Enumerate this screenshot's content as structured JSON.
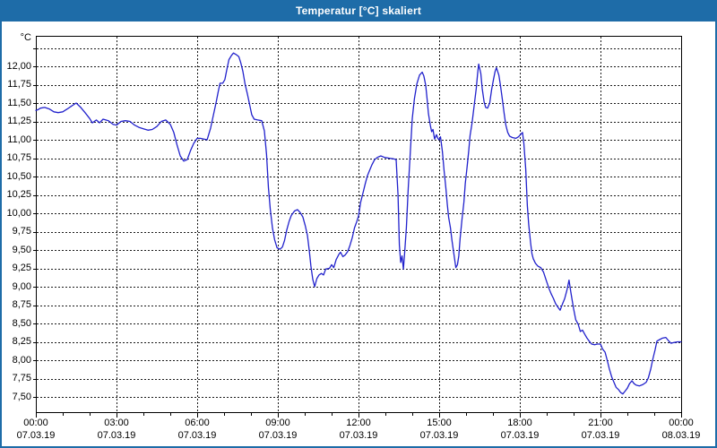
{
  "window": {
    "title": "Temperatur [°C] skaliert"
  },
  "colors": {
    "titlebar_bg": "#1E6CA8",
    "titlebar_text": "#FFFFFF",
    "window_border": "#1E6CA8",
    "plot_background": "#FFFFFF",
    "plot_border": "#000000",
    "gridline": "#1A1A1A",
    "axis_text": "#000000",
    "series_line": "#2121CC"
  },
  "chart_data": {
    "type": "line",
    "title": "Temperatur [°C] skaliert",
    "y_unit": "°C",
    "ylabel": "",
    "xlabel": "",
    "grid": "dashed, every 0.25 °C horizontally and every 3 h vertically",
    "legend": "none",
    "ylim_gridlines": [
      7.5,
      12.25
    ],
    "y_tick_step": 0.25,
    "y_ticks": [
      {
        "value": 12.25,
        "label": ""
      },
      {
        "value": 12.0,
        "label": "12,00"
      },
      {
        "value": 11.75,
        "label": "11,75"
      },
      {
        "value": 11.5,
        "label": "11,50"
      },
      {
        "value": 11.25,
        "label": "11,25"
      },
      {
        "value": 11.0,
        "label": "11,00"
      },
      {
        "value": 10.75,
        "label": "10,75"
      },
      {
        "value": 10.5,
        "label": "10,50"
      },
      {
        "value": 10.25,
        "label": "10,25"
      },
      {
        "value": 10.0,
        "label": "10,00"
      },
      {
        "value": 9.75,
        "label": "9,75"
      },
      {
        "value": 9.5,
        "label": "9,50"
      },
      {
        "value": 9.25,
        "label": "9,25"
      },
      {
        "value": 9.0,
        "label": "9,00"
      },
      {
        "value": 8.75,
        "label": "8,75"
      },
      {
        "value": 8.5,
        "label": "8,50"
      },
      {
        "value": 8.25,
        "label": "8,25"
      },
      {
        "value": 8.0,
        "label": "8,00"
      },
      {
        "value": 7.75,
        "label": "7,75"
      },
      {
        "value": 7.5,
        "label": "7,50"
      }
    ],
    "x_ticks": [
      {
        "hour": 0,
        "time": "00:00",
        "date": "07.03.19"
      },
      {
        "hour": 3,
        "time": "03:00",
        "date": "07.03.19"
      },
      {
        "hour": 6,
        "time": "06:00",
        "date": "07.03.19"
      },
      {
        "hour": 9,
        "time": "09:00",
        "date": "07.03.19"
      },
      {
        "hour": 12,
        "time": "12:00",
        "date": "07.03.19"
      },
      {
        "hour": 15,
        "time": "15:00",
        "date": "07.03.19"
      },
      {
        "hour": 18,
        "time": "18:00",
        "date": "07.03.19"
      },
      {
        "hour": 21,
        "time": "21:00",
        "date": "07.03.19"
      },
      {
        "hour": 24,
        "time": "00:00",
        "date": "08.03.19"
      }
    ],
    "x_minor_tick_every_hours": 1,
    "x_range_hours": [
      0,
      24
    ],
    "series": [
      {
        "name": "Temperatur",
        "unit": "°C",
        "x_hours": [
          0,
          0.08,
          0.17,
          0.33,
          0.5,
          0.67,
          0.83,
          1,
          1.17,
          1.33,
          1.5,
          1.67,
          1.83,
          2,
          2.1,
          2.25,
          2.37,
          2.5,
          2.7,
          2.87,
          3,
          3.17,
          3.33,
          3.5,
          3.67,
          3.83,
          4,
          4.17,
          4.33,
          4.5,
          4.67,
          4.83,
          5,
          5.13,
          5.25,
          5.37,
          5.5,
          5.63,
          5.75,
          5.87,
          6,
          6.12,
          6.25,
          6.37,
          6.5,
          6.6,
          6.7,
          6.78,
          6.85,
          6.95,
          7.03,
          7.1,
          7.18,
          7.28,
          7.35,
          7.45,
          7.55,
          7.62,
          7.7,
          7.78,
          7.87,
          7.95,
          8.03,
          8.12,
          8.25,
          8.4,
          8.5,
          8.58,
          8.65,
          8.72,
          8.8,
          8.88,
          8.97,
          9.08,
          9.17,
          9.25,
          9.33,
          9.42,
          9.5,
          9.62,
          9.73,
          9.83,
          9.93,
          10.02,
          10.1,
          10.17,
          10.23,
          10.3,
          10.37,
          10.45,
          10.53,
          10.62,
          10.7,
          10.78,
          10.92,
          11,
          11.08,
          11.17,
          11.27,
          11.33,
          11.42,
          11.5,
          11.6,
          11.68,
          11.77,
          11.85,
          11.93,
          12,
          12.08,
          12.17,
          12.25,
          12.33,
          12.42,
          12.5,
          12.6,
          12.7,
          12.83,
          12.97,
          13.13,
          13.3,
          13.4,
          13.47,
          13.52,
          13.57,
          13.62,
          13.67,
          13.72,
          13.78,
          13.85,
          13.93,
          14,
          14.08,
          14.17,
          14.27,
          14.37,
          14.43,
          14.5,
          14.55,
          14.6,
          14.67,
          14.72,
          14.77,
          14.83,
          14.9,
          14.95,
          15,
          15.05,
          15.12,
          15.18,
          15.25,
          15.3,
          15.35,
          15.42,
          15.48,
          15.55,
          15.62,
          15.68,
          15.73,
          15.78,
          15.85,
          15.92,
          15.97,
          16.03,
          16.1,
          16.15,
          16.22,
          16.3,
          16.38,
          16.43,
          16.47,
          16.55,
          16.6,
          16.67,
          16.73,
          16.8,
          16.88,
          16.95,
          17.02,
          17.08,
          17.13,
          17.22,
          17.28,
          17.35,
          17.42,
          17.48,
          17.55,
          17.62,
          17.72,
          17.85,
          17.95,
          18.05,
          18.1,
          18.15,
          18.22,
          18.28,
          18.33,
          18.4,
          18.45,
          18.5,
          18.58,
          18.67,
          18.78,
          18.88,
          18.97,
          19.08,
          19.17,
          19.25,
          19.33,
          19.42,
          19.5,
          19.58,
          19.67,
          19.75,
          19.83,
          19.9,
          20,
          20.08,
          20.17,
          20.25,
          20.33,
          20.42,
          20.5,
          20.58,
          20.67,
          20.78,
          20.88,
          21,
          21.08,
          21.17,
          21.25,
          21.33,
          21.42,
          21.5,
          21.58,
          21.67,
          21.75,
          21.83,
          21.92,
          22,
          22.08,
          22.17,
          22.25,
          22.33,
          22.45,
          22.58,
          22.7,
          22.78,
          22.87,
          22.95,
          23.03,
          23.1,
          23.2,
          23.3,
          23.43,
          23.52,
          23.62,
          23.73,
          23.87,
          24
        ],
        "y_celsius": [
          11.4,
          11.41,
          11.43,
          11.44,
          11.42,
          11.38,
          11.37,
          11.38,
          11.42,
          11.46,
          11.5,
          11.44,
          11.37,
          11.29,
          11.23,
          11.27,
          11.23,
          11.28,
          11.26,
          11.21,
          11.2,
          11.25,
          11.26,
          11.25,
          11.2,
          11.17,
          11.15,
          11.13,
          11.14,
          11.18,
          11.25,
          11.27,
          11.21,
          11.1,
          10.93,
          10.78,
          10.71,
          10.73,
          10.85,
          10.95,
          11.02,
          11.02,
          11.01,
          11,
          11.16,
          11.33,
          11.5,
          11.65,
          11.77,
          11.77,
          11.82,
          11.95,
          12.09,
          12.15,
          12.18,
          12.16,
          12.13,
          12.05,
          11.93,
          11.76,
          11.62,
          11.48,
          11.34,
          11.28,
          11.27,
          11.26,
          11.12,
          10.8,
          10.35,
          10.05,
          9.8,
          9.64,
          9.53,
          9.51,
          9.54,
          9.63,
          9.77,
          9.89,
          9.97,
          10.03,
          10.05,
          10.01,
          9.95,
          9.83,
          9.7,
          9.49,
          9.28,
          9.1,
          9,
          9.11,
          9.16,
          9.18,
          9.16,
          9.24,
          9.25,
          9.3,
          9.26,
          9.37,
          9.44,
          9.47,
          9.41,
          9.43,
          9.48,
          9.56,
          9.67,
          9.8,
          9.88,
          9.96,
          10.15,
          10.28,
          10.4,
          10.51,
          10.59,
          10.66,
          10.73,
          10.76,
          10.78,
          10.76,
          10.75,
          10.74,
          10.73,
          10.25,
          9.57,
          9.33,
          9.42,
          9.24,
          9.48,
          9.8,
          10.34,
          10.85,
          11.29,
          11.56,
          11.76,
          11.88,
          11.92,
          11.87,
          11.74,
          11.56,
          11.36,
          11.2,
          11.11,
          11.14,
          11.01,
          11.07,
          11.02,
          11,
          11.04,
          10.84,
          10.59,
          10.34,
          10.13,
          9.95,
          9.8,
          9.62,
          9.44,
          9.26,
          9.3,
          9.42,
          9.66,
          9.92,
          10.15,
          10.4,
          10.6,
          10.85,
          11.06,
          11.22,
          11.46,
          11.7,
          11.9,
          12.03,
          11.9,
          11.7,
          11.52,
          11.44,
          11.43,
          11.5,
          11.68,
          11.82,
          11.93,
          11.98,
          11.88,
          11.74,
          11.55,
          11.35,
          11.2,
          11.1,
          11.05,
          11.03,
          11.02,
          11.04,
          11.08,
          11.1,
          10.95,
          10.6,
          10.1,
          9.85,
          9.6,
          9.45,
          9.38,
          9.32,
          9.28,
          9.26,
          9.2,
          9.1,
          8.98,
          8.9,
          8.84,
          8.77,
          8.72,
          8.68,
          8.76,
          8.84,
          8.95,
          9.09,
          8.92,
          8.7,
          8.55,
          8.49,
          8.39,
          8.41,
          8.35,
          8.3,
          8.26,
          8.22,
          8.21,
          8.22,
          8.22,
          8.15,
          8.11,
          8,
          7.88,
          7.77,
          7.7,
          7.63,
          7.6,
          7.56,
          7.54,
          7.58,
          7.62,
          7.68,
          7.72,
          7.68,
          7.66,
          7.65,
          7.67,
          7.7,
          7.76,
          7.88,
          8.02,
          8.14,
          8.26,
          8.28,
          8.3,
          8.31,
          8.27,
          8.23,
          8.24,
          8.25,
          8.25
        ]
      }
    ]
  }
}
